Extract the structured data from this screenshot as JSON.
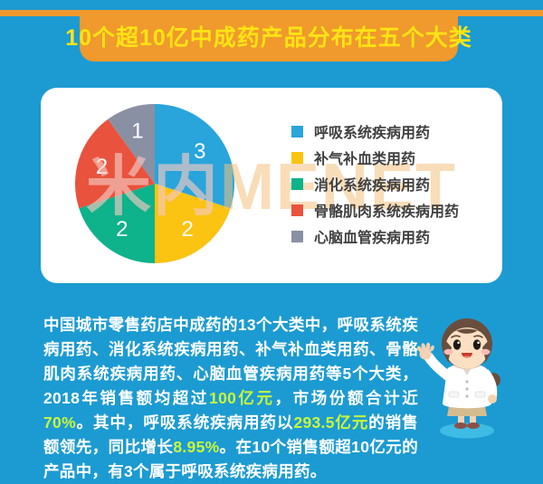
{
  "colors": {
    "background": "#1C9BD2",
    "banner_bg": "#F0992C",
    "banner_text": "#FFE414",
    "card_bg": "#FFFFFF",
    "body_text": "#FFFFFF",
    "highlight": "#C9F63C",
    "legend_text": "#3F3F3F",
    "pie_value_label": "#FFFFFF",
    "mascot_shadow": "#3FBCE4"
  },
  "banner": {
    "title": "10个超10亿中成药产品分布在五个大类"
  },
  "watermark": {
    "cn": "米内",
    "en": "MENET"
  },
  "chart_data": {
    "type": "pie",
    "title": "10个超10亿中成药产品分布在五个大类",
    "categories": [
      "呼吸系统疾病用药",
      "补气补血类用药",
      "消化系统疾病用药",
      "骨骼肌肉系统疾病用药",
      "心脑血管疾病用药"
    ],
    "values": [
      3,
      2,
      2,
      2,
      1
    ],
    "colors": [
      "#29A5DC",
      "#FBC312",
      "#0EB28B",
      "#E9523D",
      "#8A90A3"
    ],
    "start_angle_deg": 0,
    "direction": "clockwise",
    "total": 10,
    "value_label_color": "#FFFFFF",
    "legend_position": "right",
    "legend_marker": "square"
  },
  "paragraph": {
    "segments": [
      {
        "text": "中国城市零售药店中成药的13个大类中，呼吸系统疾病用药、消化系统疾病用药、补气补血类用药、骨骼肌肉系统疾病用药、心脑血管疾病用药等5个大类，2018年销售额均超过",
        "highlight": false
      },
      {
        "text": "100亿元",
        "highlight": true
      },
      {
        "text": "，市场份额合计近",
        "highlight": false
      },
      {
        "text": "70%",
        "highlight": true
      },
      {
        "text": "。其中，呼吸系统疾病用药以",
        "highlight": false
      },
      {
        "text": "293.5亿元",
        "highlight": true
      },
      {
        "text": "的销售额领先，同比增长",
        "highlight": false
      },
      {
        "text": "8.95%",
        "highlight": true
      },
      {
        "text": "。在10个销售额超10亿元的产品中，有3个属于呼吸系统疾病用药。",
        "highlight": false
      }
    ]
  }
}
